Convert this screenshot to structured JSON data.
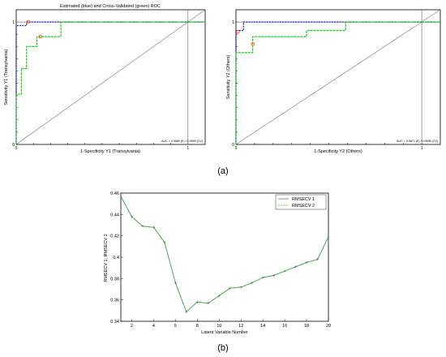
{
  "panel_labels": [
    "(a)",
    "(b)"
  ],
  "chart_data": [
    {
      "type": "line",
      "panel": "a-left",
      "title": "Estimated (blue) and Cross-Validated (green) ROC",
      "xlabel": "1-Specificity Y1 (Transylvania)",
      "ylabel": "Sensitivity Y1 (Transylvania)",
      "auc_text": "AUC = 0.9889 (E) / 0.9599 (CV)",
      "xlim": [
        0,
        1.1
      ],
      "ylim": [
        0,
        1.1
      ],
      "x_ticks": [
        "0",
        "0.1",
        "0.2",
        "0.3",
        "0.4",
        "0.5",
        "0.6",
        "0.7",
        "0.8",
        "0.9",
        "1"
      ],
      "y_ticks": [
        "0",
        "0.1",
        "0.2",
        "0.3",
        "0.4",
        "0.5",
        "0.6",
        "0.7",
        "0.8",
        "0.9",
        "1"
      ],
      "colors": {
        "estimated": "#0000cc",
        "cross_validated": "#00cc00",
        "diagonal": "#777777",
        "threshold": "#ff5500"
      },
      "series": [
        {
          "x": [
            0,
            0,
            0.06,
            0.06,
            0.06,
            1.1
          ],
          "y": [
            0,
            0.97,
            0.97,
            1,
            1,
            1
          ]
        },
        {
          "x": [
            0,
            0,
            0.03,
            0.03,
            0.06,
            0.06,
            0.12,
            0.12,
            0.26,
            0.26,
            1.1
          ],
          "y": [
            0,
            0.41,
            0.41,
            0.62,
            0.62,
            0.8,
            0.8,
            0.88,
            0.88,
            1,
            1
          ]
        }
      ],
      "markers": [
        {
          "x": 0.07,
          "y": 1.0
        },
        {
          "x": 0.14,
          "y": 0.88
        }
      ]
    },
    {
      "type": "line",
      "panel": "a-right",
      "xlabel": "1-Specificity Y2 (Others)",
      "ylabel": "Sensitivity Y2 (Others)",
      "auc_text": "AUC = 0.9871 (E) / 0.9598 (CV)",
      "xlim": [
        0,
        1.1
      ],
      "ylim": [
        0,
        1.1
      ],
      "x_ticks": [
        "0",
        "0.1",
        "0.2",
        "0.3",
        "0.4",
        "0.5",
        "0.6",
        "0.7",
        "0.8",
        "0.9",
        "1"
      ],
      "y_ticks": [
        "0",
        "0.1",
        "0.2",
        "0.3",
        "0.4",
        "0.5",
        "0.6",
        "0.7",
        "0.8",
        "0.9",
        "1"
      ],
      "colors": {
        "estimated": "#0000cc",
        "cross_validated": "#00cc00",
        "diagonal": "#777777",
        "threshold": "#ff5500"
      },
      "series": [
        {
          "x": [
            0,
            0,
            0.04,
            0.04,
            1.1
          ],
          "y": [
            0,
            0.93,
            0.93,
            1,
            1
          ]
        },
        {
          "x": [
            0,
            0,
            0.09,
            0.09,
            0.38,
            0.38,
            0.59,
            0.59,
            1.1
          ],
          "y": [
            0,
            0.75,
            0.75,
            0.88,
            0.88,
            0.93,
            0.93,
            1,
            1
          ]
        }
      ],
      "markers": [
        {
          "x": 0.01,
          "y": 0.92
        },
        {
          "x": 0.09,
          "y": 0.82
        }
      ]
    },
    {
      "type": "line",
      "panel": "b",
      "xlabel": "Latent Variable Number",
      "ylabel": "RMSECV 1, RMSECV 2",
      "xlim": [
        1,
        20
      ],
      "ylim": [
        0.34,
        0.46
      ],
      "x_ticks": [
        2,
        4,
        6,
        8,
        10,
        12,
        14,
        16,
        18,
        20
      ],
      "y_ticks": [
        "0.34",
        "0.36",
        "0.38",
        "0.4",
        "0.42",
        "0.44",
        "0.46"
      ],
      "legend": [
        "RMSECV 1",
        "RMSECV 2"
      ],
      "legend_position": "top-right",
      "colors": {
        "rmsecv1": "#777777",
        "rmsecv2": "#33cc33"
      },
      "x": [
        1,
        2,
        3,
        4,
        5,
        6,
        7,
        8,
        9,
        10,
        11,
        12,
        13,
        14,
        15,
        16,
        17,
        18,
        19,
        20
      ],
      "series": [
        {
          "name": "RMSECV 1",
          "values": [
            0.457,
            0.438,
            0.429,
            0.428,
            0.414,
            0.376,
            0.349,
            0.358,
            0.357,
            0.364,
            0.371,
            0.372,
            0.376,
            0.381,
            0.383,
            0.387,
            0.391,
            0.395,
            0.398,
            0.419
          ]
        },
        {
          "name": "RMSECV 2",
          "values": [
            0.457,
            0.438,
            0.429,
            0.428,
            0.414,
            0.376,
            0.349,
            0.358,
            0.357,
            0.364,
            0.371,
            0.372,
            0.376,
            0.381,
            0.383,
            0.387,
            0.391,
            0.395,
            0.398,
            0.419
          ]
        }
      ]
    }
  ]
}
